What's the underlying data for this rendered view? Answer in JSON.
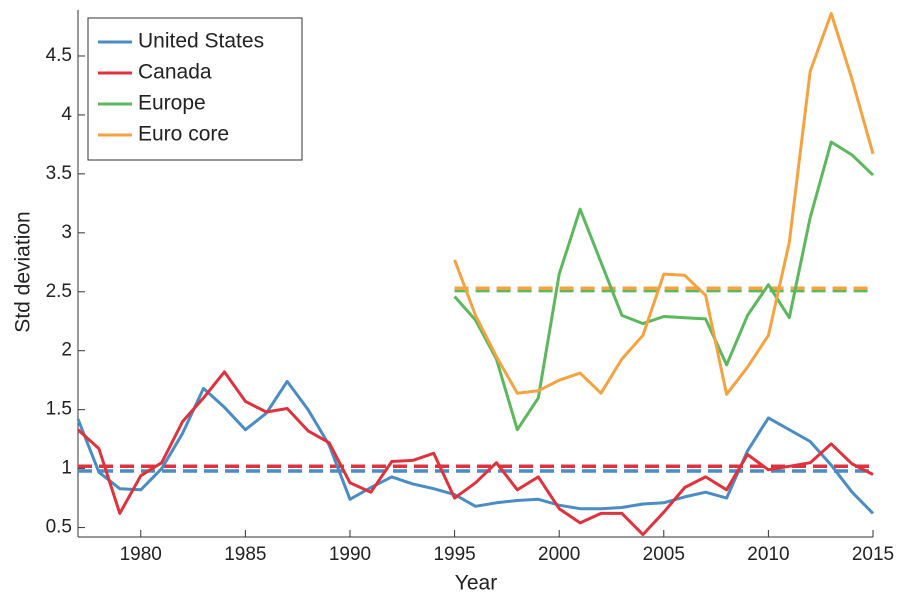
{
  "chart_data": {
    "type": "line",
    "x_label": "Year",
    "y_label": "Std deviation",
    "x": [
      1977,
      1978,
      1979,
      1980,
      1981,
      1982,
      1983,
      1984,
      1985,
      1986,
      1987,
      1988,
      1989,
      1990,
      1991,
      1992,
      1993,
      1994,
      1995,
      1996,
      1997,
      1998,
      1999,
      2000,
      2001,
      2002,
      2003,
      2004,
      2005,
      2006,
      2007,
      2008,
      2009,
      2010,
      2011,
      2012,
      2013,
      2014,
      2015
    ],
    "xlim": [
      1977,
      2015
    ],
    "xticks": [
      1980,
      1985,
      1990,
      1995,
      2000,
      2005,
      2010,
      2015
    ],
    "ylim": [
      0.42,
      4.89
    ],
    "yticks": [
      0.5,
      1,
      1.5,
      2,
      2.5,
      3,
      3.5,
      4,
      4.5
    ],
    "legend": "upper-left",
    "series": [
      {
        "name": "United States",
        "color": "#4a8cc4",
        "mean": 0.98,
        "values": [
          1.42,
          0.97,
          0.83,
          0.82,
          1.0,
          1.3,
          1.68,
          1.52,
          1.33,
          1.47,
          1.74,
          1.5,
          1.2,
          0.74,
          0.84,
          0.93,
          0.87,
          0.83,
          0.78,
          0.68,
          0.71,
          0.73,
          0.74,
          0.69,
          0.66,
          0.66,
          0.67,
          0.7,
          0.71,
          0.76,
          0.8,
          0.75,
          1.15,
          1.43,
          1.33,
          1.23,
          1.03,
          0.8,
          0.62
        ]
      },
      {
        "name": "Canada",
        "color": "#e0323c",
        "mean": 1.02,
        "values": [
          1.33,
          1.17,
          0.62,
          0.94,
          1.05,
          1.4,
          1.6,
          1.82,
          1.57,
          1.48,
          1.51,
          1.32,
          1.22,
          0.88,
          0.8,
          1.06,
          1.07,
          1.13,
          0.75,
          0.88,
          1.05,
          0.82,
          0.93,
          0.66,
          0.54,
          0.62,
          0.62,
          0.44,
          0.63,
          0.84,
          0.93,
          0.82,
          1.12,
          0.99,
          1.02,
          1.05,
          1.21,
          1.04,
          0.95
        ]
      },
      {
        "name": "Europe",
        "color": "#5cb85c",
        "mean": 2.51,
        "values": [
          null,
          null,
          null,
          null,
          null,
          null,
          null,
          null,
          null,
          null,
          null,
          null,
          null,
          null,
          null,
          null,
          null,
          null,
          2.46,
          2.26,
          1.93,
          1.33,
          1.6,
          2.65,
          3.2,
          2.75,
          2.3,
          2.23,
          2.29,
          2.28,
          2.27,
          1.88,
          2.3,
          2.56,
          2.28,
          3.13,
          3.77,
          3.66,
          3.49
        ]
      },
      {
        "name": "Euro core",
        "color": "#f5a340",
        "mean": 2.53,
        "values": [
          null,
          null,
          null,
          null,
          null,
          null,
          null,
          null,
          null,
          null,
          null,
          null,
          null,
          null,
          null,
          null,
          null,
          null,
          2.77,
          2.3,
          1.95,
          1.64,
          1.66,
          1.75,
          1.81,
          1.64,
          1.93,
          2.13,
          2.65,
          2.64,
          2.47,
          1.63,
          1.86,
          2.13,
          2.92,
          4.37,
          4.86,
          4.3,
          3.67
        ]
      }
    ]
  }
}
